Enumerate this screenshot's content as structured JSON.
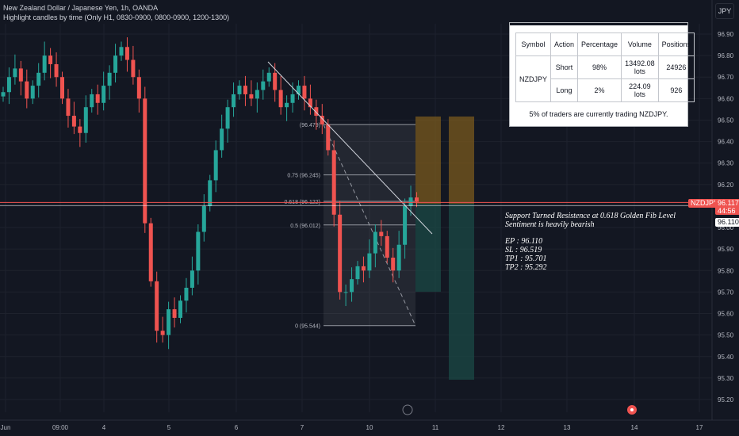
{
  "header": {
    "title": "New Zealand Dollar / Japanese Yen, 1h, OANDA",
    "subtitle": "Highlight candles by time (Only H1, 0830-0900, 0800-0900, 1200-1300)"
  },
  "currency_button": "JPY",
  "positions_panel": {
    "headers": [
      "Symbol",
      "Action",
      "Percentage",
      "Volume",
      "Positions"
    ],
    "symbol": "NZDJPY",
    "rows": [
      {
        "action": "Short",
        "percentage": "98%",
        "volume": "13492.08 lots",
        "positions": "24926"
      },
      {
        "action": "Long",
        "percentage": "2%",
        "volume": "224.09 lots",
        "positions": "926"
      }
    ],
    "note": "5% of traders are currently trading NZDJPY."
  },
  "annotation": {
    "line1": "Support Turned Resistence at 0.618 Golden Fib Level",
    "line2": "Sentiment is heavily bearish",
    "ep": "EP : 96.110",
    "sl": "SL : 96.519",
    "tp1": "TP1 : 95.701",
    "tp2": "TP2 : 95.292"
  },
  "price_badges": {
    "symbol": "NZDJPY",
    "price": "96.117",
    "countdown": "44:56",
    "entry": "96.110"
  },
  "fib_labels": [
    {
      "level": "0.75 (96.245)",
      "value": 96.245
    },
    {
      "level": "0.618 (96.122)",
      "value": 96.122
    },
    {
      "level": "0.5 (96.012)",
      "value": 96.012
    },
    {
      "level": "0 (95.544)",
      "value": 95.544
    }
  ],
  "fib_top_label": "(96.479)",
  "fib_top_value": 96.479,
  "colors": {
    "background": "#131722",
    "up": "#26a69a",
    "down": "#ef5350",
    "grid": "#1e222d",
    "text": "#b2b5be",
    "stop_zone": "#7a5a1e",
    "target_zone": "#1b4a45"
  },
  "chart_data": {
    "type": "candlestick",
    "y_axis_ticks": [
      "96.90",
      "96.80",
      "96.70",
      "96.60",
      "96.50",
      "96.40",
      "96.30",
      "96.20",
      "96.10",
      "96.00",
      "95.90",
      "95.80",
      "95.70",
      "95.60",
      "95.50",
      "95.40",
      "95.30",
      "95.20"
    ],
    "ylim": [
      95.15,
      96.95
    ],
    "x_axis_ticks": [
      "Jun",
      "09:00",
      "4",
      "5",
      "6",
      "7",
      "10",
      "11",
      "12",
      "13",
      "14",
      "17"
    ],
    "series_close": [
      96.63,
      96.7,
      96.74,
      96.68,
      96.6,
      96.66,
      96.72,
      96.8,
      96.76,
      96.7,
      96.6,
      96.52,
      96.47,
      96.44,
      96.56,
      96.62,
      96.58,
      96.66,
      96.72,
      96.8,
      96.84,
      96.78,
      96.7,
      96.6,
      96.02,
      95.75,
      95.52,
      95.5,
      95.62,
      95.58,
      95.66,
      95.72,
      95.8,
      95.98,
      96.1,
      96.22,
      96.36,
      96.46,
      96.56,
      96.62,
      96.66,
      96.62,
      96.6,
      96.64,
      96.68,
      96.72,
      96.64,
      96.56,
      96.58,
      96.62,
      96.66,
      96.6,
      96.56,
      96.52,
      96.48,
      96.36,
      96.06,
      95.7,
      95.7,
      95.76,
      95.82,
      95.8,
      95.88,
      95.98,
      95.96,
      95.86,
      95.8,
      95.92,
      96.1,
      96.14,
      96.12
    ],
    "annotations": [
      "NZDJPY 96.117",
      "96.110"
    ]
  }
}
